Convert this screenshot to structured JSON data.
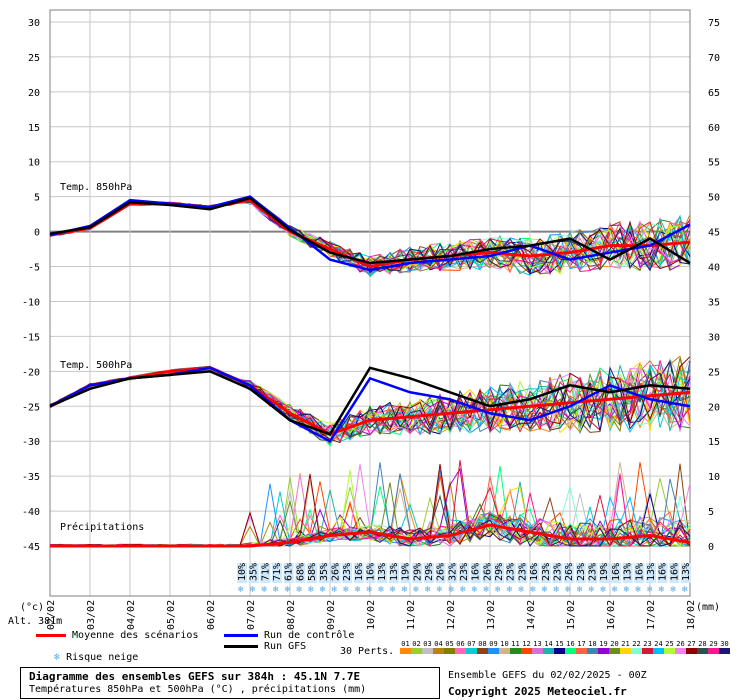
{
  "chart_data": {
    "type": "line",
    "x_dates": [
      "02/02",
      "03/02",
      "04/02",
      "05/02",
      "06/02",
      "07/02",
      "08/02",
      "09/02",
      "10/02",
      "11/02",
      "12/02",
      "13/02",
      "14/02",
      "15/02",
      "16/02",
      "17/02",
      "18/02"
    ],
    "y_left_ticks": [
      30,
      25,
      20,
      15,
      10,
      5,
      0,
      -5,
      -10,
      -15,
      -20,
      -25,
      -30,
      -35,
      -40,
      -45
    ],
    "y_right_ticks": [
      75,
      70,
      65,
      60,
      55,
      50,
      45,
      40,
      35,
      30,
      25,
      20,
      15,
      10,
      5,
      0
    ],
    "ylim_left": [
      -45,
      30
    ],
    "ylim_right": [
      0,
      75
    ],
    "y_left_unit": "(°c)",
    "y_right_unit": "(mm)",
    "label_t850": "Temp. 850hPa",
    "label_t500": "Temp. 500hPa",
    "label_precip": "Précipitations",
    "series": [
      {
        "key": "t850_mean",
        "axis": "left",
        "color": "#ff0000",
        "values": [
          -0.5,
          0.5,
          4,
          4,
          3.5,
          4.5,
          0,
          -2.5,
          -5,
          -4,
          -3.5,
          -3,
          -3.5,
          -3,
          -2,
          -2,
          -1.5
        ]
      },
      {
        "key": "t850_control",
        "axis": "left",
        "color": "#0000ff",
        "values": [
          -0.5,
          0.8,
          4.5,
          4,
          3.5,
          5,
          0.5,
          -4,
          -5.5,
          -4.5,
          -4,
          -3.5,
          -2,
          -4,
          -3,
          -2,
          1
        ]
      },
      {
        "key": "t850_gfs",
        "axis": "left",
        "color": "#000000",
        "values": [
          -0.3,
          0.6,
          4.2,
          3.8,
          3.2,
          4.8,
          0.2,
          -3,
          -4.5,
          -4,
          -3.5,
          -2.5,
          -2,
          -1,
          -4,
          -1,
          -4.5
        ]
      },
      {
        "key": "t500_mean",
        "axis": "left",
        "color": "#ff0000",
        "values": [
          -25,
          -22,
          -21,
          -20,
          -19.5,
          -22,
          -26,
          -29,
          -27,
          -26.5,
          -26,
          -25.5,
          -25,
          -24.5,
          -24,
          -23.5,
          -23
        ]
      },
      {
        "key": "t500_control",
        "axis": "left",
        "color": "#0000ff",
        "values": [
          -25,
          -22,
          -21,
          -20.5,
          -19.5,
          -22,
          -27,
          -30,
          -21,
          -23,
          -24,
          -26,
          -27,
          -25,
          -22,
          -24,
          -25
        ]
      },
      {
        "key": "t500_gfs",
        "axis": "left",
        "color": "#000000",
        "values": [
          -25,
          -22.5,
          -21,
          -20.5,
          -20,
          -22.5,
          -27,
          -29,
          -19.5,
          -21,
          -23,
          -25,
          -24,
          -22,
          -23,
          -22,
          -22.5
        ]
      },
      {
        "key": "precip_mean",
        "axis": "right",
        "color": "#ff0000",
        "values": [
          0,
          0,
          0,
          0,
          0,
          0,
          0.5,
          1.5,
          2,
          1,
          1.5,
          3,
          2,
          1,
          1,
          1.5,
          0.5
        ]
      }
    ],
    "snow_risk_pct": [
      "10%",
      "35%",
      "71%",
      "71%",
      "61%",
      "68%",
      "58%",
      "35%",
      "26%",
      "23%",
      "16%",
      "16%",
      "13%",
      "13%",
      "19%",
      "29%",
      "29%",
      "26%",
      "32%",
      "23%",
      "16%",
      "26%",
      "29%",
      "23%",
      "23%",
      "16%",
      "23%",
      "23%",
      "26%",
      "23%",
      "23%",
      "19%",
      "16%",
      "13%",
      "16%",
      "13%",
      "16%",
      "16%",
      "13%"
    ],
    "legend": {
      "mean": "Moyenne des scénarios",
      "control": "Run de contrôle",
      "gfs": "Run GFS",
      "snow": "Risque neige",
      "perts": "30 Perts.",
      "pert_numbers": [
        "01",
        "02",
        "03",
        "04",
        "05",
        "06",
        "07",
        "08",
        "09",
        "10",
        "11",
        "12",
        "13",
        "14",
        "15",
        "16",
        "17",
        "18",
        "19",
        "20",
        "21",
        "22",
        "23",
        "24",
        "25",
        "26",
        "27",
        "28",
        "29",
        "30"
      ],
      "pert_colors": [
        "#ff8c00",
        "#9acd32",
        "#c0c0c0",
        "#b8860b",
        "#808000",
        "#ff69b4",
        "#00ced1",
        "#8b4513",
        "#1e90ff",
        "#d2b48c",
        "#228b22",
        "#ff4500",
        "#da70d6",
        "#20b2aa",
        "#000080",
        "#00ff7f",
        "#ff6347",
        "#4682b4",
        "#9400d3",
        "#6b8e23",
        "#ffd700",
        "#7fffd4",
        "#dc143c",
        "#00bfff",
        "#adff2f",
        "#ee82ee",
        "#8b0000",
        "#2f4f4f",
        "#ff1493",
        "#191970"
      ]
    },
    "alt": "Alt. 381m"
  },
  "footer": {
    "title": "Diagramme des ensembles GEFS sur 384h : 45.1N 7.7E",
    "subtitle": "Températures 850hPa et 500hPa (°C) , précipitations (mm)",
    "run": "Ensemble GEFS du 02/02/2025 - 00Z",
    "copyright": "Copyright 2025 Meteociel.fr"
  }
}
